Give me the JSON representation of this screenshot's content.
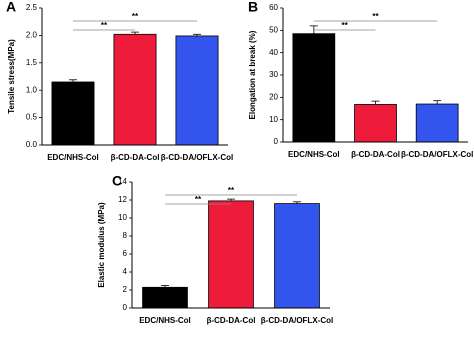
{
  "chart_data": [
    {
      "type": "bar",
      "panel": "A",
      "ylabel": "Tensile stress(MPa)",
      "categories": [
        "EDC/NHS-Col",
        "β-CD-DA-Col",
        "β-CD-DA/OFLX-Col"
      ],
      "values": [
        1.15,
        2.02,
        1.99
      ],
      "errors": [
        0.04,
        0.04,
        0.03
      ],
      "colors": [
        "#000000",
        "#ee1c3a",
        "#3355ee"
      ],
      "ylim": [
        0,
        2.5
      ],
      "yticks": [
        {
          "value": 0,
          "label": "0.0"
        },
        {
          "value": 0.5,
          "label": "0.5"
        },
        {
          "value": 1,
          "label": "1.0"
        },
        {
          "value": 1.5,
          "label": "1.5"
        },
        {
          "value": 2,
          "label": "2.0"
        },
        {
          "value": 2.5,
          "label": "2.5"
        }
      ],
      "annotations": [
        "**",
        "**"
      ]
    },
    {
      "type": "bar",
      "panel": "B",
      "ylabel": "Elongation at break (%)",
      "categories": [
        "EDC/NHS-Col",
        "β-CD-DA-Col",
        "β-CD-DA/OFLX-Col"
      ],
      "values": [
        48.5,
        16.8,
        17
      ],
      "errors": [
        3.5,
        1.5,
        1.5
      ],
      "colors": [
        "#000000",
        "#ee1c3a",
        "#3355ee"
      ],
      "ylim": [
        0,
        60
      ],
      "yticks": [
        0,
        10,
        20,
        30,
        40,
        50,
        60
      ],
      "annotations": [
        "**",
        "**"
      ]
    },
    {
      "type": "bar",
      "panel": "C",
      "ylabel": "Elastic modulus (MPa)",
      "categories": [
        "EDC/NHS-Col",
        "β-CD-DA-Col",
        "β-CD-DA/OFLX-Col"
      ],
      "values": [
        2.3,
        11.9,
        11.6
      ],
      "errors": [
        0.2,
        0.2,
        0.2
      ],
      "colors": [
        "#000000",
        "#ee1c3a",
        "#3355ee"
      ],
      "ylim": [
        0,
        14
      ],
      "yticks": [
        0,
        2,
        4,
        6,
        8,
        10,
        12,
        14
      ],
      "annotations": [
        "**",
        "**"
      ]
    }
  ]
}
